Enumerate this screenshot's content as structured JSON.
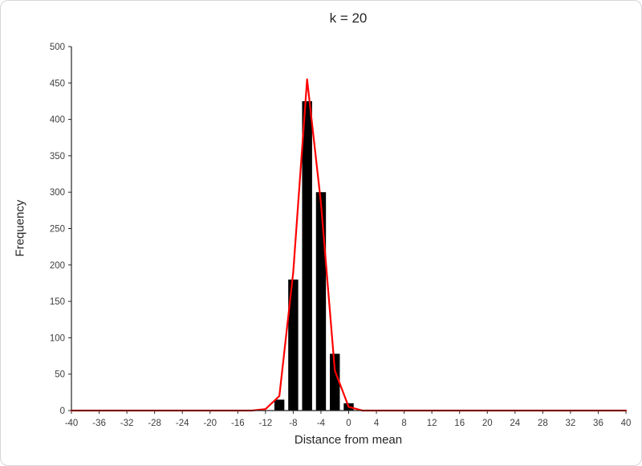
{
  "chart_data": {
    "type": "bar",
    "subtype": "histogram_with_normal_curve",
    "title": "k = 20",
    "xlabel": "Distance from mean",
    "ylabel": "Frequency",
    "xlim": [
      -40,
      40
    ],
    "ylim": [
      0,
      500
    ],
    "xticks": [
      -40,
      -36,
      -32,
      -28,
      -24,
      -20,
      -16,
      -12,
      -8,
      -4,
      0,
      4,
      8,
      12,
      16,
      20,
      24,
      28,
      32,
      36,
      40
    ],
    "yticks": [
      0,
      50,
      100,
      150,
      200,
      250,
      300,
      350,
      400,
      450,
      500
    ],
    "grid": false,
    "legend": "none",
    "axis_color": "#262626",
    "bars": {
      "bin_width": 2,
      "centers": [
        -10,
        -8,
        -6,
        -4,
        -2,
        0
      ],
      "values": [
        15,
        180,
        425,
        300,
        78,
        10
      ],
      "color": "#000000"
    },
    "curve": {
      "name": "normal-fit-line",
      "color": "#ff0000",
      "points": [
        [
          -40,
          0
        ],
        [
          -20,
          0
        ],
        [
          -16,
          0
        ],
        [
          -14,
          0
        ],
        [
          -12,
          2
        ],
        [
          -10,
          20
        ],
        [
          -8,
          190
        ],
        [
          -6,
          455
        ],
        [
          -4,
          285
        ],
        [
          -2,
          55
        ],
        [
          0,
          5
        ],
        [
          2,
          0
        ],
        [
          6,
          0
        ],
        [
          12,
          0
        ],
        [
          24,
          0
        ],
        [
          40,
          0
        ]
      ]
    }
  }
}
